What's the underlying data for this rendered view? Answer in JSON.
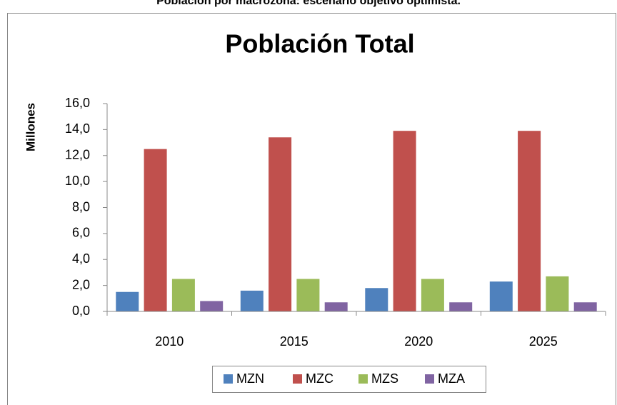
{
  "chart_data": {
    "type": "bar",
    "caption": "Población por macrozona: escenario objetivo optimista.",
    "title": "Población Total",
    "y_label": "Millones",
    "categories": [
      "2010",
      "2015",
      "2020",
      "2025"
    ],
    "series": [
      {
        "name": "MZN",
        "color": "#4f81bd",
        "values": [
          1.5,
          1.6,
          1.8,
          2.3
        ]
      },
      {
        "name": "MZC",
        "color": "#c0504d",
        "values": [
          12.5,
          13.4,
          13.9,
          13.9
        ]
      },
      {
        "name": "MZS",
        "color": "#9bbb59",
        "values": [
          2.5,
          2.5,
          2.5,
          2.7
        ]
      },
      {
        "name": "MZA",
        "color": "#8064a2",
        "values": [
          0.8,
          0.7,
          0.7,
          0.7
        ]
      }
    ],
    "ylim": [
      0,
      16
    ],
    "yticks": [
      {
        "value": 0,
        "label": "0,0"
      },
      {
        "value": 2,
        "label": "2,0"
      },
      {
        "value": 4,
        "label": "4,0"
      },
      {
        "value": 6,
        "label": "6,0"
      },
      {
        "value": 8,
        "label": "8,0"
      },
      {
        "value": 10,
        "label": "10,0"
      },
      {
        "value": 12,
        "label": "12,0"
      },
      {
        "value": 14,
        "label": "14,0"
      },
      {
        "value": 16,
        "label": "16,0"
      }
    ],
    "grid": false,
    "legend": "bottom"
  }
}
